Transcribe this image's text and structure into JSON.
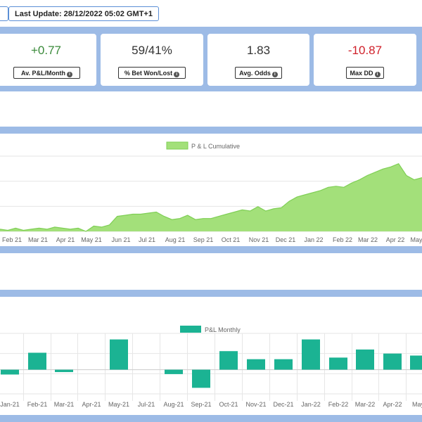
{
  "header": {
    "last_update": "Last Update: 28/12/2022 05:02 GMT+1"
  },
  "kpis": [
    {
      "value": "+0.77",
      "label": "Av. P&L/Month",
      "color": "#3a8a3a"
    },
    {
      "value": "59/41%",
      "label": "% Bet Won/Lost",
      "color": "#333333"
    },
    {
      "value": "1.83",
      "label": "Avg. Odds",
      "color": "#333333"
    },
    {
      "value": "-10.87",
      "label": "Max DD",
      "color": "#d0202a"
    }
  ],
  "icons": {
    "info": "info-circle-icon"
  },
  "colors": {
    "band": "#9dbbe6",
    "area_fill": "#a3e07a",
    "area_line": "#7fcf55",
    "bar_fill": "#1bb393"
  },
  "chart_data": [
    {
      "type": "area",
      "legend": "P & L Cumulative",
      "x_ticks": [
        "Feb 21",
        "Mar 21",
        "Apr 21",
        "May 21",
        "Jun 21",
        "Jul 21",
        "Aug 21",
        "Sep 21",
        "Oct 21",
        "Nov 21",
        "Dec 21",
        "Jan 22",
        "Feb 22",
        "Mar 22",
        "Apr 22",
        "May"
      ],
      "values": [
        2,
        1,
        3,
        1,
        2,
        3,
        2,
        4,
        3,
        2,
        3,
        0,
        5,
        4,
        6,
        14,
        15,
        16,
        16,
        17,
        18,
        14,
        11,
        12,
        15,
        11,
        12,
        12,
        14,
        16,
        18,
        20,
        19,
        23,
        19,
        21,
        22,
        28,
        32,
        34,
        36,
        38,
        41,
        42,
        41,
        45,
        48,
        52,
        55,
        58,
        60,
        63,
        52,
        48,
        50
      ],
      "ylim": [
        0,
        70
      ]
    },
    {
      "type": "bar",
      "legend": "P&L Monthly",
      "categories": [
        "Jan-21",
        "Feb-21",
        "Mar-21",
        "Apr-21",
        "May-21",
        "Jul-21",
        "Aug-21",
        "Sep-21",
        "Oct-21",
        "Nov-21",
        "Dec-21",
        "Jan-22",
        "Feb-22",
        "Mar-22",
        "Apr-22",
        "May-"
      ],
      "values": [
        -1.2,
        4.2,
        -0.6,
        0,
        7.5,
        0,
        -1.1,
        -4.5,
        4.6,
        2.6,
        2.6,
        7.5,
        3.0,
        5.0,
        4.0,
        3.5
      ],
      "ylim": [
        -6,
        9
      ]
    }
  ]
}
